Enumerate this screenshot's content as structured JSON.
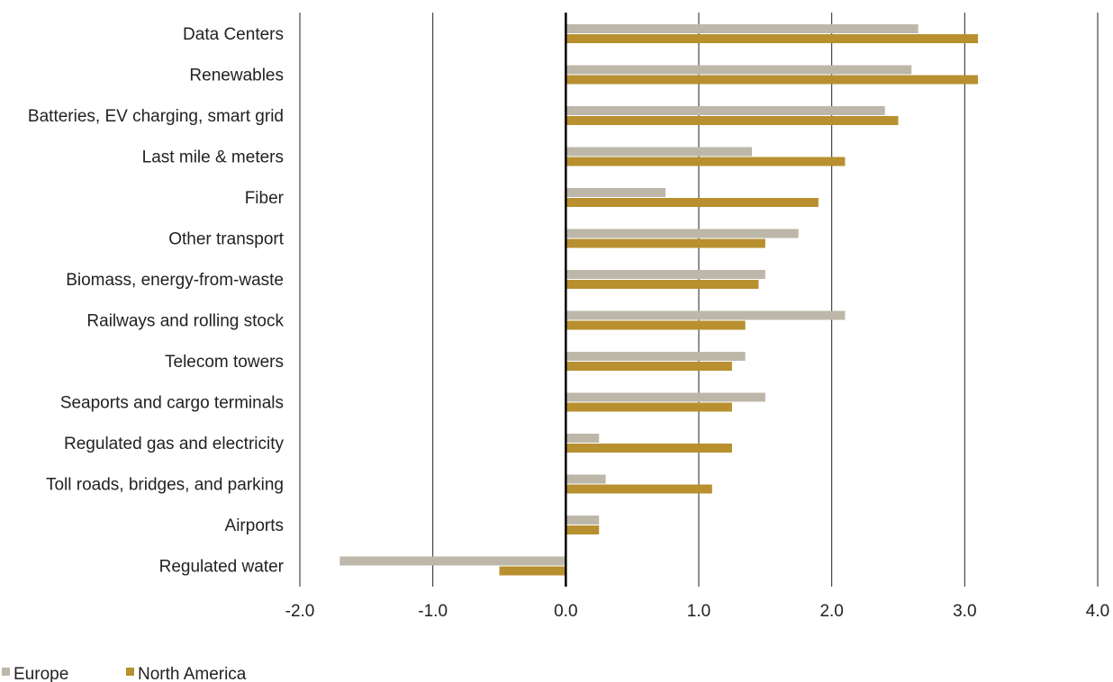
{
  "chart_data": {
    "type": "bar",
    "orientation": "horizontal",
    "categories": [
      "Data Centers",
      "Renewables",
      "Batteries, EV charging, smart grid",
      "Last mile & meters",
      "Fiber ",
      "Other transport",
      "Biomass, energy-from-waste",
      "Railways and rolling stock",
      "Telecom towers",
      "Seaports and cargo terminals",
      "Regulated gas and electricity",
      "Toll roads, bridges, and parking",
      "Airports",
      "Regulated water"
    ],
    "series": [
      {
        "name": "Europe",
        "color": "#bdb7aa",
        "values": [
          2.65,
          2.6,
          2.4,
          1.4,
          0.75,
          1.75,
          1.5,
          2.1,
          1.35,
          1.5,
          0.25,
          0.3,
          0.25,
          -1.7
        ]
      },
      {
        "name": "North America",
        "color": "#b8902f",
        "values": [
          3.1,
          3.1,
          2.5,
          2.1,
          1.9,
          1.5,
          1.45,
          1.35,
          1.25,
          1.25,
          1.25,
          1.1,
          0.25,
          -0.5
        ]
      }
    ],
    "xlim": [
      -2.0,
      4.0
    ],
    "xticks": [
      "-2.0",
      "-1.0",
      "0.0",
      "1.0",
      "2.0",
      "3.0",
      "4.0"
    ],
    "grid": true,
    "legend_position": "bottom-left",
    "title": "",
    "xlabel": "",
    "ylabel": ""
  }
}
